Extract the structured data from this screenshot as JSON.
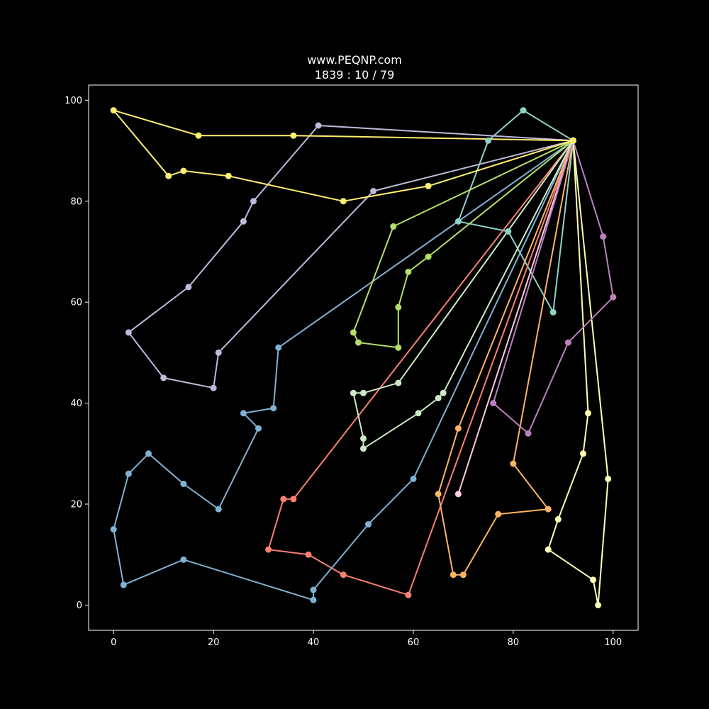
{
  "chart_data": {
    "type": "line",
    "title": "www.PEQNP.com",
    "subtitle": "1839 : 10 / 79",
    "xlabel": "",
    "ylabel": "",
    "xlim": [
      -5,
      105
    ],
    "ylim": [
      -5,
      103
    ],
    "xticks": [
      0,
      20,
      40,
      60,
      80,
      100
    ],
    "yticks": [
      0,
      20,
      40,
      60,
      80,
      100
    ],
    "grid": false,
    "background": "#000000",
    "foreground": "#ffffff",
    "depot": [
      92,
      92
    ],
    "series": [
      {
        "color": "#8dd3c7",
        "points": [
          [
            92,
            92
          ],
          [
            82,
            98
          ],
          [
            75,
            92
          ],
          [
            69,
            76
          ],
          [
            79,
            74
          ],
          [
            88,
            58
          ],
          [
            92,
            92
          ]
        ]
      },
      {
        "color": "#ffffb3",
        "points": [
          [
            92,
            92
          ],
          [
            99,
            25
          ],
          [
            97,
            0
          ],
          [
            96,
            5
          ],
          [
            87,
            11
          ],
          [
            89,
            17
          ],
          [
            94,
            30
          ],
          [
            95,
            38
          ],
          [
            92,
            92
          ]
        ]
      },
      {
        "color": "#bebada",
        "points": [
          [
            92,
            92
          ],
          [
            41,
            95
          ],
          [
            28,
            80
          ],
          [
            26,
            76
          ],
          [
            15,
            63
          ],
          [
            3,
            54
          ],
          [
            10,
            45
          ],
          [
            20,
            43
          ],
          [
            21,
            50
          ],
          [
            52,
            82
          ],
          [
            92,
            92
          ]
        ]
      },
      {
        "color": "#fb8072",
        "points": [
          [
            92,
            92
          ],
          [
            36,
            21
          ],
          [
            34,
            21
          ],
          [
            31,
            11
          ],
          [
            39,
            10
          ],
          [
            46,
            6
          ],
          [
            59,
            2
          ],
          [
            92,
            92
          ]
        ]
      },
      {
        "color": "#80b1d3",
        "points": [
          [
            92,
            92
          ],
          [
            33,
            51
          ],
          [
            32,
            39
          ],
          [
            26,
            38
          ],
          [
            29,
            35
          ],
          [
            21,
            19
          ],
          [
            14,
            24
          ],
          [
            7,
            30
          ],
          [
            3,
            26
          ],
          [
            0,
            15
          ],
          [
            2,
            4
          ],
          [
            14,
            9
          ],
          [
            40,
            1
          ],
          [
            40,
            3
          ],
          [
            51,
            16
          ],
          [
            60,
            25
          ],
          [
            92,
            92
          ]
        ]
      },
      {
        "color": "#fdb462",
        "points": [
          [
            92,
            92
          ],
          [
            80,
            28
          ],
          [
            87,
            19
          ],
          [
            77,
            18
          ],
          [
            70,
            6
          ],
          [
            68,
            6
          ],
          [
            65,
            22
          ],
          [
            69,
            35
          ],
          [
            92,
            92
          ]
        ]
      },
      {
        "color": "#b3de69",
        "points": [
          [
            92,
            92
          ],
          [
            56,
            75
          ],
          [
            48,
            54
          ],
          [
            49,
            52
          ],
          [
            57,
            51
          ],
          [
            57,
            59
          ],
          [
            59,
            66
          ],
          [
            63,
            69
          ],
          [
            92,
            92
          ]
        ]
      },
      {
        "color": "#fccde5",
        "points": [
          [
            92,
            92
          ],
          [
            69,
            22
          ],
          [
            92,
            92
          ]
        ]
      },
      {
        "color": "#bc80bd",
        "points": [
          [
            92,
            92
          ],
          [
            98,
            73
          ],
          [
            100,
            61
          ],
          [
            91,
            52
          ],
          [
            83,
            34
          ],
          [
            76,
            40
          ],
          [
            92,
            92
          ]
        ]
      },
      {
        "color": "#ccebc5",
        "points": [
          [
            92,
            92
          ],
          [
            66,
            42
          ],
          [
            65,
            41
          ],
          [
            61,
            38
          ],
          [
            50,
            31
          ],
          [
            50,
            33
          ],
          [
            48,
            42
          ],
          [
            50,
            42
          ],
          [
            57,
            44
          ],
          [
            92,
            92
          ]
        ]
      },
      {
        "color": "#ffed6f",
        "points": [
          [
            92,
            92
          ],
          [
            36,
            93
          ],
          [
            17,
            93
          ],
          [
            0,
            98
          ],
          [
            11,
            85
          ],
          [
            14,
            86
          ],
          [
            23,
            85
          ],
          [
            46,
            80
          ],
          [
            63,
            83
          ],
          [
            92,
            92
          ]
        ]
      }
    ]
  }
}
